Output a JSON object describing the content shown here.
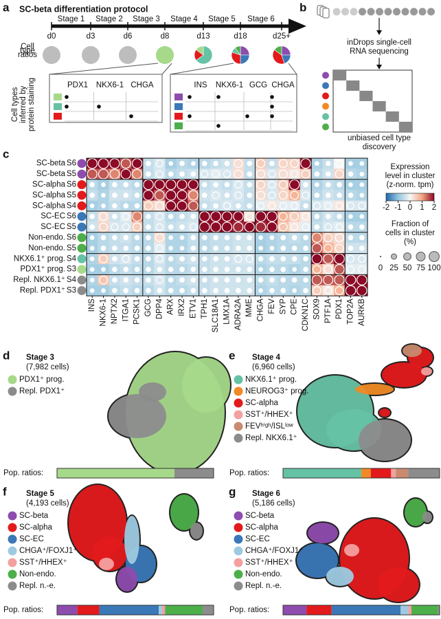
{
  "panel_a": {
    "label": "a",
    "title": "SC-beta differentiation protocol",
    "stages": [
      "Stage 1",
      "Stage 2",
      "Stage 3",
      "Stage 4",
      "Stage 5",
      "Stage 6"
    ],
    "days": [
      "d0",
      "d3",
      "d6",
      "d8",
      "d13",
      "d18",
      "d25+"
    ],
    "ratio_label": [
      "Cell",
      "type",
      "ratios"
    ],
    "pies": [
      {
        "values": [
          100
        ],
        "colors": [
          "#bdbdbd"
        ]
      },
      {
        "values": [
          100
        ],
        "colors": [
          "#bdbdbd"
        ]
      },
      {
        "values": [
          100
        ],
        "colors": [
          "#bdbdbd"
        ]
      },
      {
        "values": [
          100
        ],
        "colors": [
          "#a6d98a"
        ]
      },
      {
        "values": [
          65,
          20,
          15
        ],
        "colors": [
          "#66c2a5",
          "#e31a1c",
          "#a6d98a"
        ]
      },
      {
        "values": [
          25,
          25,
          30,
          10,
          10
        ],
        "colors": [
          "#8e4cae",
          "#3a78b8",
          "#e31a1c",
          "#66c2a5",
          "#4daf4a"
        ]
      },
      {
        "values": [
          25,
          20,
          40,
          15
        ],
        "colors": [
          "#8e4cae",
          "#3a78b8",
          "#e31a1c",
          "#4daf4a"
        ]
      }
    ],
    "staining_label": [
      "Cell types",
      "inferred by",
      "protein staining"
    ],
    "tables": [
      {
        "markers": [
          "PDX1",
          "NKX6-1",
          "CHGA"
        ],
        "rows": [
          {
            "color": "#a6d98a",
            "dots": [
              true,
              false,
              false
            ]
          },
          {
            "color": "#66c2a5",
            "dots": [
              true,
              true,
              false
            ]
          },
          {
            "color": "#e31a1c",
            "dots": [
              false,
              false,
              true
            ]
          }
        ]
      },
      {
        "markers": [
          "INS",
          "NKX6-1",
          "GCG",
          "CHGA"
        ],
        "rows": [
          {
            "color": "#8e4cae",
            "dots": [
              true,
              true,
              false,
              true
            ]
          },
          {
            "color": "#3a78b8",
            "dots": [
              false,
              false,
              false,
              true
            ]
          },
          {
            "color": "#e31a1c",
            "dots": [
              true,
              false,
              true,
              true
            ]
          },
          {
            "color": "#4daf4a",
            "dots": [
              false,
              true,
              false,
              false
            ]
          }
        ]
      }
    ]
  },
  "panel_b": {
    "label": "b",
    "method": [
      "inDrops single-cell",
      "RNA sequencing"
    ],
    "result": [
      "unbiased cell type",
      "discovery"
    ],
    "colors": [
      "#8e4cae",
      "#3a78b8",
      "#e31a1c",
      "#f08a24",
      "#66c2a5",
      "#4daf4a"
    ]
  },
  "panel_c": {
    "label": "c",
    "rows": [
      {
        "name": "SC-beta",
        "stage": "S6",
        "color": "#8e4cae"
      },
      {
        "name": "SC-beta",
        "stage": "S5",
        "color": "#8e4cae"
      },
      {
        "name": "SC-alpha",
        "stage": "S6",
        "color": "#e31a1c"
      },
      {
        "name": "SC-alpha",
        "stage": "S5",
        "color": "#e31a1c"
      },
      {
        "name": "SC-alpha",
        "stage": "S4",
        "color": "#e31a1c"
      },
      {
        "name": "SC-EC",
        "stage": "S6",
        "color": "#3a78b8"
      },
      {
        "name": "SC-EC",
        "stage": "S5",
        "color": "#3a78b8"
      },
      {
        "name": "Non-endo.",
        "stage": "S6",
        "color": "#4daf4a"
      },
      {
        "name": "Non-endo.",
        "stage": "S5",
        "color": "#4daf4a"
      },
      {
        "name": "NKX6.1⁺ prog.",
        "stage": "S4",
        "color": "#66c2a5"
      },
      {
        "name": "PDX1⁺ prog.",
        "stage": "S3",
        "color": "#a6d98a"
      },
      {
        "name": "Repl. NKX6.1⁺",
        "stage": "S4",
        "color": "#8c8c8c"
      },
      {
        "name": "Repl. PDX1⁺",
        "stage": "S3",
        "color": "#8c8c8c"
      }
    ],
    "genes": [
      "INS",
      "NKX6-1",
      "NPTX2",
      "ITGA1",
      "PCSK1",
      "GCG",
      "DPP4",
      "ARX",
      "IRX2",
      "ETV1",
      "TPH1",
      "SLC18A1",
      "LMX1A",
      "ADRA2A",
      "MME",
      "CHGA",
      "FEV",
      "SYP",
      "CPE",
      "CDKN1C",
      "SOX9",
      "PTF1A",
      "PDX1",
      "TOP2A",
      "AURKB"
    ],
    "expression": [
      [
        2,
        2,
        2,
        1.5,
        2,
        -0.5,
        -0.3,
        -0.8,
        -0.6,
        -0.7,
        -0.6,
        -0.5,
        -0.4,
        0.3,
        -0.5,
        0.5,
        -0.5,
        0.4,
        0.4,
        2,
        -0.7,
        -0.5,
        0,
        -0.8,
        -0.8
      ],
      [
        1.5,
        1.5,
        1.2,
        2,
        1.2,
        -0.5,
        -0.3,
        -0.6,
        -0.5,
        -0.4,
        -0.3,
        -0.2,
        -0.3,
        0.3,
        -0.5,
        0.3,
        -0.3,
        0.3,
        0.2,
        0.5,
        -0.6,
        -0.4,
        0.4,
        -0.6,
        -0.7
      ],
      [
        -0.6,
        -0.8,
        -0.5,
        -0.5,
        -0.6,
        2,
        2,
        2,
        2,
        2,
        -0.5,
        -0.4,
        -0.5,
        -0.3,
        -0.5,
        0.4,
        -0.3,
        0.5,
        2,
        -0.4,
        -0.7,
        -0.5,
        -0.6,
        -0.8,
        -0.8
      ],
      [
        -0.5,
        -0.7,
        -0.4,
        -0.4,
        -0.5,
        2,
        1.5,
        2,
        2,
        1.2,
        -0.4,
        -0.3,
        -0.4,
        -0.3,
        -0.5,
        0.3,
        -0.3,
        0.4,
        0.8,
        -0.3,
        -0.6,
        -0.4,
        -0.5,
        -0.6,
        -0.7
      ],
      [
        -0.8,
        -0.7,
        -0.5,
        -0.6,
        -0.6,
        0.5,
        0.3,
        2,
        2,
        1.5,
        -0.5,
        -0.4,
        -0.3,
        -0.4,
        -0.5,
        -0.2,
        0.2,
        -0.2,
        -0.2,
        -0.5,
        -0.3,
        -0.2,
        0.2,
        -0.3,
        -0.3
      ],
      [
        -0.5,
        0.3,
        -0.4,
        -0.2,
        1.2,
        -0.5,
        -0.3,
        -0.6,
        -0.5,
        -0.4,
        2,
        2,
        2,
        2,
        0.2,
        2,
        2,
        0.8,
        0.5,
        0.2,
        -0.6,
        -0.4,
        -0.5,
        -0.8,
        -0.8
      ],
      [
        -0.4,
        0.4,
        -0.3,
        -0.3,
        0.5,
        -0.5,
        -0.3,
        -0.5,
        -0.4,
        -0.3,
        2,
        2,
        2,
        1.8,
        2,
        1.8,
        2,
        0.6,
        0.2,
        -0.2,
        -0.5,
        -0.3,
        -0.2,
        -0.6,
        -0.6
      ],
      [
        -0.8,
        -0.6,
        -0.5,
        -0.4,
        -0.6,
        -0.6,
        0.3,
        -0.7,
        -0.7,
        -0.5,
        -0.6,
        -0.5,
        -0.5,
        -0.4,
        -0.4,
        -0.8,
        -0.7,
        -0.6,
        -0.5,
        -0.6,
        1.2,
        0.5,
        0.3,
        -0.6,
        -0.6
      ],
      [
        -0.8,
        -0.6,
        -0.5,
        -0.5,
        -0.6,
        -0.6,
        -0.2,
        -0.7,
        -0.7,
        -0.5,
        -0.6,
        -0.5,
        -0.5,
        -0.4,
        -0.4,
        -0.8,
        -0.7,
        -0.6,
        -0.6,
        -0.6,
        1.5,
        0.8,
        0.4,
        -0.4,
        -0.4
      ],
      [
        -0.7,
        0.5,
        -0.4,
        -0.3,
        -0.5,
        -0.6,
        -0.3,
        -0.6,
        -0.5,
        -0.4,
        -0.5,
        -0.4,
        -0.4,
        -0.3,
        -0.3,
        -0.6,
        -0.5,
        -0.5,
        -0.5,
        -0.6,
        2,
        1.5,
        2,
        -0.3,
        -0.3
      ],
      [
        -0.8,
        -0.8,
        -0.6,
        -0.5,
        -0.6,
        -0.6,
        -0.4,
        -0.6,
        -0.6,
        -0.5,
        -0.5,
        -0.4,
        -0.4,
        -0.4,
        -0.4,
        -0.7,
        -0.6,
        -0.6,
        -0.7,
        -0.6,
        0.8,
        0.3,
        1.5,
        -0.2,
        -0.2
      ],
      [
        -0.7,
        0.6,
        -0.5,
        -0.4,
        -0.5,
        -0.5,
        -0.3,
        -0.6,
        -0.5,
        -0.4,
        -0.5,
        -0.4,
        -0.4,
        -0.4,
        -0.4,
        -0.6,
        -0.5,
        -0.6,
        -0.6,
        -0.6,
        1.5,
        1.5,
        1.5,
        2,
        2
      ],
      [
        -0.8,
        -0.8,
        -0.6,
        -0.5,
        -0.6,
        -0.6,
        -0.4,
        -0.6,
        -0.6,
        -0.5,
        -0.5,
        -0.4,
        -0.4,
        -0.4,
        -0.4,
        -0.7,
        -0.6,
        -0.6,
        -0.7,
        -0.6,
        0.5,
        0.2,
        0.8,
        2,
        2
      ]
    ],
    "fraction": [
      [
        95,
        95,
        90,
        85,
        90,
        15,
        40,
        10,
        15,
        10,
        15,
        15,
        15,
        60,
        15,
        60,
        15,
        60,
        60,
        90,
        10,
        15,
        40,
        10,
        10
      ],
      [
        90,
        90,
        85,
        90,
        85,
        15,
        40,
        15,
        15,
        15,
        40,
        40,
        40,
        60,
        15,
        60,
        40,
        60,
        40,
        60,
        15,
        15,
        60,
        15,
        10
      ],
      [
        15,
        10,
        15,
        15,
        15,
        95,
        90,
        95,
        90,
        90,
        15,
        15,
        15,
        40,
        15,
        60,
        40,
        60,
        90,
        15,
        10,
        15,
        15,
        10,
        10
      ],
      [
        15,
        10,
        15,
        15,
        15,
        95,
        85,
        95,
        90,
        85,
        15,
        40,
        15,
        40,
        15,
        60,
        40,
        60,
        60,
        40,
        15,
        15,
        15,
        15,
        10
      ],
      [
        10,
        10,
        15,
        15,
        15,
        60,
        60,
        90,
        90,
        85,
        15,
        15,
        40,
        15,
        15,
        40,
        40,
        40,
        40,
        15,
        40,
        40,
        40,
        40,
        40
      ],
      [
        15,
        60,
        15,
        40,
        85,
        15,
        40,
        15,
        15,
        15,
        95,
        95,
        90,
        90,
        40,
        95,
        95,
        60,
        60,
        40,
        15,
        15,
        15,
        10,
        10
      ],
      [
        15,
        60,
        40,
        40,
        60,
        15,
        40,
        15,
        15,
        40,
        95,
        95,
        90,
        85,
        90,
        90,
        95,
        60,
        40,
        40,
        15,
        40,
        40,
        15,
        15
      ],
      [
        10,
        15,
        15,
        15,
        15,
        15,
        60,
        10,
        10,
        15,
        15,
        15,
        15,
        15,
        15,
        10,
        10,
        15,
        15,
        15,
        85,
        60,
        60,
        15,
        15
      ],
      [
        10,
        15,
        15,
        15,
        15,
        15,
        40,
        10,
        10,
        15,
        15,
        15,
        15,
        15,
        15,
        10,
        10,
        15,
        15,
        15,
        90,
        60,
        60,
        15,
        15
      ],
      [
        10,
        60,
        15,
        40,
        15,
        15,
        40,
        15,
        15,
        15,
        15,
        15,
        15,
        40,
        40,
        15,
        15,
        15,
        15,
        15,
        95,
        85,
        95,
        40,
        40
      ],
      [
        10,
        10,
        15,
        15,
        15,
        15,
        15,
        15,
        15,
        15,
        15,
        15,
        15,
        15,
        15,
        10,
        15,
        15,
        10,
        15,
        60,
        60,
        90,
        40,
        40
      ],
      [
        10,
        60,
        15,
        15,
        15,
        15,
        40,
        15,
        15,
        15,
        15,
        15,
        15,
        15,
        15,
        15,
        15,
        15,
        15,
        15,
        90,
        85,
        90,
        95,
        95
      ],
      [
        10,
        10,
        15,
        15,
        15,
        15,
        15,
        15,
        15,
        15,
        15,
        15,
        15,
        15,
        15,
        10,
        15,
        15,
        10,
        15,
        60,
        40,
        60,
        95,
        95
      ]
    ],
    "colorbar": {
      "title": [
        "Expression",
        "level in cluster",
        "(z-norm. tpm)"
      ],
      "lim": [
        -2,
        2
      ],
      "ticks": [
        -2,
        -1,
        0,
        1,
        2
      ],
      "colors": [
        "#2166ac",
        "#92c5de",
        "#f7f7f7",
        "#f4a582",
        "#8b0a26"
      ]
    },
    "size_legend": {
      "title": [
        "Fraction of",
        "cells in cluster",
        "(%)"
      ],
      "ticks": [
        0,
        25,
        50,
        75,
        100
      ]
    }
  },
  "panel_d": {
    "label": "d",
    "title": "Stage 3",
    "cells": "(7,982 cells)",
    "ratio_label": "Pop. ratios:",
    "series": [
      {
        "name": "PDX1⁺ prog.",
        "color": "#a6d98a"
      },
      {
        "name": "Repl. PDX1⁺",
        "color": "#8c8c8c"
      }
    ],
    "ratios": [
      75,
      25
    ]
  },
  "panel_e": {
    "label": "e",
    "title": "Stage 4",
    "cells": "(6,960 cells)",
    "ratio_label": "Pop. ratios:",
    "series": [
      {
        "name": "NKX6.1⁺ prog.",
        "color": "#66c2a5"
      },
      {
        "name": "NEUROG3⁺ prog.",
        "color": "#f08a24"
      },
      {
        "name": "SC-alpha",
        "color": "#e31a1c"
      },
      {
        "name": "SST⁺/HHEX⁺",
        "color": "#f4a0a0"
      },
      {
        "name": "FEVʰⁱᵍʰ/ISLˡᵒʷ",
        "color": "#c98a70"
      },
      {
        "name": "Repl. NKX6.1⁺",
        "color": "#8c8c8c"
      }
    ],
    "ratios": [
      50,
      6,
      13,
      3,
      8,
      20
    ]
  },
  "panel_f": {
    "label": "f",
    "title": "Stage 5",
    "cells": "(4,193 cells)",
    "ratio_label": "Pop. ratios:",
    "series": [
      {
        "name": "SC-beta",
        "color": "#8e4cae"
      },
      {
        "name": "SC-alpha",
        "color": "#e31a1c"
      },
      {
        "name": "SC-EC",
        "color": "#3a78b8"
      },
      {
        "name": "CHGA⁺/FOXJ1⁺",
        "color": "#9ecae1"
      },
      {
        "name": "SST⁺/HHEX⁺",
        "color": "#f4a0a0"
      },
      {
        "name": "Non-endo.",
        "color": "#4daf4a"
      },
      {
        "name": "Repl. n.-e.",
        "color": "#8c8c8c"
      }
    ],
    "ratios": [
      13,
      14,
      38,
      2,
      2,
      24,
      7
    ]
  },
  "panel_g": {
    "label": "g",
    "title": "Stage 6",
    "cells": "(5,186 cells)",
    "ratio_label": "Pop. ratios:",
    "series": [
      {
        "name": "SC-beta",
        "color": "#8e4cae"
      },
      {
        "name": "SC-alpha",
        "color": "#e31a1c"
      },
      {
        "name": "SC-EC",
        "color": "#3a78b8"
      },
      {
        "name": "CHGA⁺/FOXJ1⁺",
        "color": "#9ecae1"
      },
      {
        "name": "SST⁺/HHEX⁺",
        "color": "#f4a0a0"
      },
      {
        "name": "Non-endo.",
        "color": "#4daf4a"
      },
      {
        "name": "Repl. n.-e.",
        "color": "#8c8c8c"
      }
    ],
    "ratios": [
      15,
      16,
      44,
      5,
      2,
      17,
      1
    ]
  }
}
